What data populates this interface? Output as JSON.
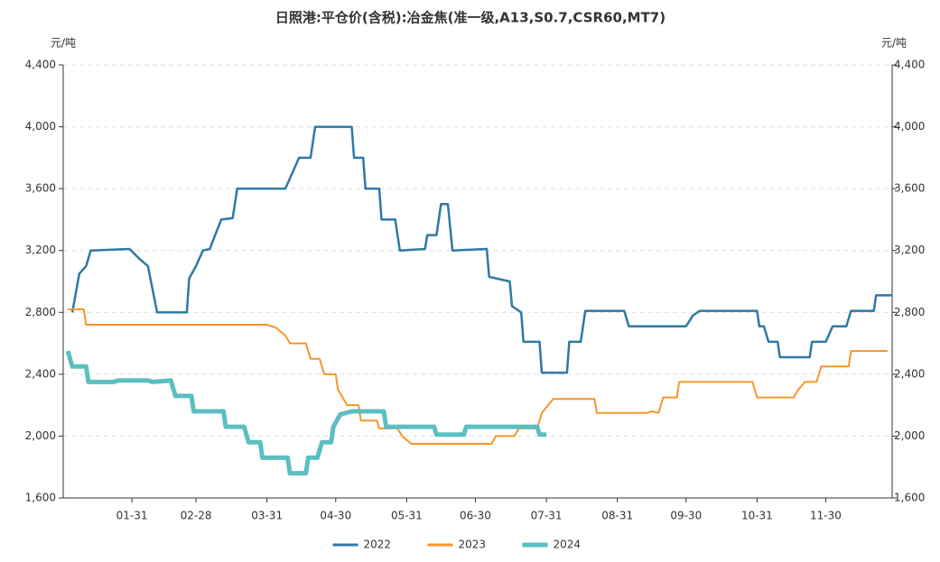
{
  "chart_data": {
    "type": "line",
    "title": "日照港:平仓价(含税):冶金焦(准一级,A13,S0.7,CSR60,MT7)",
    "y_label": "元/吨",
    "y2_label": "元/吨",
    "xlim": [
      1,
      363
    ],
    "xticks": [
      {
        "value": 31,
        "label": "01-31"
      },
      {
        "value": 59,
        "label": "02-28"
      },
      {
        "value": 90,
        "label": "03-31"
      },
      {
        "value": 120,
        "label": "04-30"
      },
      {
        "value": 151,
        "label": "05-31"
      },
      {
        "value": 181,
        "label": "06-30"
      },
      {
        "value": 212,
        "label": "07-31"
      },
      {
        "value": 243,
        "label": "08-31"
      },
      {
        "value": 273,
        "label": "09-30"
      },
      {
        "value": 304,
        "label": "10-31"
      },
      {
        "value": 334,
        "label": "11-30"
      }
    ],
    "ylim": [
      1600,
      4400
    ],
    "yticks": [
      {
        "value": 1600,
        "label": "1,600"
      },
      {
        "value": 2000,
        "label": "2,000"
      },
      {
        "value": 2400,
        "label": "2,400"
      },
      {
        "value": 2800,
        "label": "2,800"
      },
      {
        "value": 3200,
        "label": "3,200"
      },
      {
        "value": 3600,
        "label": "3,600"
      },
      {
        "value": 4000,
        "label": "4,000"
      },
      {
        "value": 4400,
        "label": "4,400"
      }
    ],
    "y2lim": [
      1600,
      4400
    ],
    "y2ticks": [
      {
        "value": 1600,
        "label": "1,600"
      },
      {
        "value": 2000,
        "label": "2,000"
      },
      {
        "value": 2400,
        "label": "2,400"
      },
      {
        "value": 2800,
        "label": "2,800"
      },
      {
        "value": 3200,
        "label": "3,200"
      },
      {
        "value": 3600,
        "label": "3,600"
      },
      {
        "value": 4000,
        "label": "4,000"
      },
      {
        "value": 4400,
        "label": "4,400"
      }
    ],
    "grid": true,
    "legend": "bottom",
    "series": [
      {
        "name": "2022",
        "color": "#2e7aa5",
        "width": 2.5,
        "x": [
          5,
          8,
          11,
          13,
          30,
          34,
          38,
          42,
          55,
          56,
          59,
          62,
          65,
          70,
          75,
          77,
          98,
          101,
          104,
          109,
          111,
          127,
          128,
          132,
          133,
          139,
          140,
          146,
          148,
          159,
          160,
          164,
          166,
          169,
          171,
          186,
          187,
          196,
          197,
          201,
          202,
          209,
          210,
          221,
          222,
          227,
          229,
          246,
          248,
          273,
          276,
          279,
          304,
          305,
          307,
          309,
          313,
          314,
          327,
          328,
          334,
          337,
          343,
          345,
          355,
          356,
          363
        ],
        "values": [
          2800,
          3050,
          3100,
          3200,
          3210,
          3150,
          3100,
          2800,
          2800,
          3020,
          3100,
          3200,
          3210,
          3400,
          3410,
          3600,
          3600,
          3700,
          3800,
          3800,
          4000,
          4000,
          3800,
          3800,
          3600,
          3600,
          3400,
          3400,
          3200,
          3210,
          3300,
          3300,
          3500,
          3500,
          3200,
          3210,
          3030,
          3000,
          2840,
          2800,
          2610,
          2610,
          2410,
          2410,
          2610,
          2610,
          2810,
          2810,
          2710,
          2710,
          2780,
          2810,
          2810,
          2710,
          2710,
          2610,
          2610,
          2510,
          2510,
          2610,
          2610,
          2710,
          2710,
          2810,
          2810,
          2910,
          2910
        ]
      },
      {
        "name": "2023",
        "color": "#f5962a",
        "width": 2,
        "x": [
          3,
          10,
          11,
          90,
          94,
          98,
          100,
          107,
          109,
          113,
          115,
          120,
          121,
          125,
          130,
          131,
          138,
          139,
          147,
          149,
          153,
          188,
          190,
          198,
          200,
          208,
          210,
          215,
          233,
          234,
          256,
          258,
          261,
          263,
          269,
          270,
          302,
          304,
          320,
          322,
          325,
          330,
          332,
          344,
          345,
          361
        ],
        "values": [
          2820,
          2820,
          2720,
          2720,
          2700,
          2650,
          2600,
          2600,
          2500,
          2500,
          2400,
          2400,
          2300,
          2200,
          2200,
          2100,
          2100,
          2050,
          2050,
          2000,
          1950,
          1950,
          2000,
          2000,
          2050,
          2050,
          2150,
          2240,
          2240,
          2150,
          2150,
          2160,
          2150,
          2250,
          2250,
          2350,
          2350,
          2250,
          2250,
          2300,
          2350,
          2350,
          2450,
          2450,
          2550,
          2550
        ]
      },
      {
        "name": "2024",
        "color": "#5bbfc0",
        "width": 5,
        "x": [
          3,
          5,
          11,
          12,
          23,
          25,
          38,
          40,
          48,
          50,
          57,
          58,
          71,
          72,
          80,
          82,
          87,
          88,
          99,
          100,
          107,
          108,
          112,
          114,
          118,
          119,
          122,
          127,
          141,
          142,
          163,
          164,
          176,
          177,
          208,
          209,
          212
        ],
        "values": [
          2550,
          2450,
          2450,
          2350,
          2350,
          2360,
          2360,
          2350,
          2360,
          2260,
          2260,
          2160,
          2160,
          2060,
          2060,
          1960,
          1960,
          1860,
          1860,
          1760,
          1760,
          1860,
          1860,
          1960,
          1960,
          2060,
          2140,
          2160,
          2160,
          2060,
          2060,
          2010,
          2010,
          2060,
          2060,
          2010,
          2010
        ]
      }
    ]
  }
}
